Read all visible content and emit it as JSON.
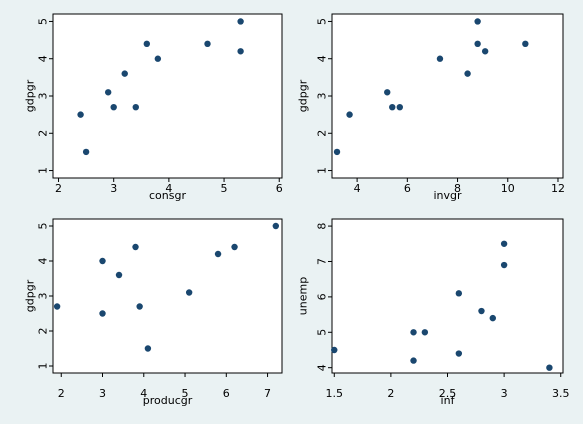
{
  "colors": {
    "background": "#eaf2f3",
    "plot_background": "#ffffff",
    "marker": "#1a476f"
  },
  "chart_data": [
    {
      "type": "scatter",
      "xlabel": "consgr",
      "ylabel": "gdpgr",
      "xlim": [
        1.9,
        6.05
      ],
      "ylim": [
        0.8,
        5.2
      ],
      "xticks": [
        2,
        3,
        4,
        5,
        6
      ],
      "yticks": [
        1,
        2,
        3,
        4,
        5
      ],
      "grid": false,
      "points": [
        {
          "x": 2.4,
          "y": 2.5
        },
        {
          "x": 2.5,
          "y": 1.5
        },
        {
          "x": 2.9,
          "y": 3.1
        },
        {
          "x": 3.0,
          "y": 2.7
        },
        {
          "x": 3.2,
          "y": 3.6
        },
        {
          "x": 3.4,
          "y": 2.7
        },
        {
          "x": 3.6,
          "y": 4.4
        },
        {
          "x": 3.8,
          "y": 4.0
        },
        {
          "x": 4.7,
          "y": 4.4
        },
        {
          "x": 5.3,
          "y": 5.0
        },
        {
          "x": 5.3,
          "y": 4.2
        }
      ]
    },
    {
      "type": "scatter",
      "xlabel": "invgr",
      "ylabel": "gdpgr",
      "xlim": [
        3.0,
        12.2
      ],
      "ylim": [
        0.8,
        5.2
      ],
      "xticks": [
        4,
        6,
        8,
        10,
        12
      ],
      "yticks": [
        1,
        2,
        3,
        4,
        5
      ],
      "grid": false,
      "points": [
        {
          "x": 3.2,
          "y": 1.5
        },
        {
          "x": 3.7,
          "y": 2.5
        },
        {
          "x": 5.2,
          "y": 3.1
        },
        {
          "x": 5.4,
          "y": 2.7
        },
        {
          "x": 5.7,
          "y": 2.7
        },
        {
          "x": 7.3,
          "y": 4.0
        },
        {
          "x": 8.4,
          "y": 3.6
        },
        {
          "x": 8.8,
          "y": 5.0
        },
        {
          "x": 8.8,
          "y": 4.4
        },
        {
          "x": 9.1,
          "y": 4.2
        },
        {
          "x": 10.7,
          "y": 4.4
        }
      ]
    },
    {
      "type": "scatter",
      "xlabel": "producgr",
      "ylabel": "gdpgr",
      "xlim": [
        1.8,
        7.35
      ],
      "ylim": [
        0.8,
        5.2
      ],
      "xticks": [
        2,
        3,
        4,
        5,
        6,
        7
      ],
      "yticks": [
        1,
        2,
        3,
        4,
        5
      ],
      "grid": false,
      "points": [
        {
          "x": 1.9,
          "y": 2.7
        },
        {
          "x": 3.0,
          "y": 4.0
        },
        {
          "x": 3.0,
          "y": 2.5
        },
        {
          "x": 3.4,
          "y": 3.6
        },
        {
          "x": 3.8,
          "y": 4.4
        },
        {
          "x": 3.9,
          "y": 2.7
        },
        {
          "x": 4.1,
          "y": 1.5
        },
        {
          "x": 5.1,
          "y": 3.1
        },
        {
          "x": 5.8,
          "y": 4.2
        },
        {
          "x": 6.2,
          "y": 4.4
        },
        {
          "x": 7.2,
          "y": 5.0
        }
      ]
    },
    {
      "type": "scatter",
      "xlabel": "inf",
      "ylabel": "unemp",
      "xlim": [
        1.48,
        3.52
      ],
      "ylim": [
        3.85,
        8.2
      ],
      "xticks": [
        1.5,
        2,
        2.5,
        3,
        3.5
      ],
      "yticks": [
        4,
        5,
        6,
        7,
        8
      ],
      "grid": false,
      "points": [
        {
          "x": 1.5,
          "y": 4.5
        },
        {
          "x": 2.2,
          "y": 5.0
        },
        {
          "x": 2.2,
          "y": 4.2
        },
        {
          "x": 2.3,
          "y": 5.0
        },
        {
          "x": 2.6,
          "y": 6.1
        },
        {
          "x": 2.6,
          "y": 4.4
        },
        {
          "x": 2.8,
          "y": 5.6
        },
        {
          "x": 2.9,
          "y": 5.4
        },
        {
          "x": 3.0,
          "y": 7.5
        },
        {
          "x": 3.0,
          "y": 6.9
        },
        {
          "x": 3.4,
          "y": 4.0
        }
      ]
    }
  ]
}
